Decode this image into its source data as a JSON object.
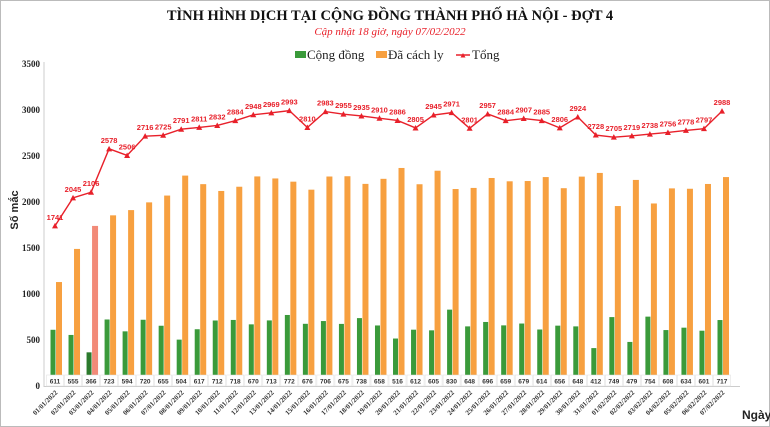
{
  "chart_data": {
    "type": "bar",
    "title": "TÌNH HÌNH DỊCH TẠI CỘNG ĐỒNG THÀNH PHỐ HÀ NỘI - ĐỢT 4",
    "subtitle": "Cập nhật 18 giờ, ngày  07/02/2022",
    "xlabel": "Ngày",
    "ylabel": "Số mắc",
    "ylim": [
      0,
      3500
    ],
    "yticks": [
      0,
      500,
      1000,
      1500,
      2000,
      2500,
      3000,
      3500
    ],
    "legend_position": "top",
    "categories": [
      "01/01/2022",
      "02/01/2022",
      "03/01/2022",
      "04/01/2022",
      "05/01/2022",
      "06/01/2022",
      "07/01/2022",
      "08/01/2022",
      "09/01/2022",
      "10/01/2022",
      "11/01/2022",
      "12/01/2022",
      "13/01/2022",
      "14/01/2022",
      "15/01/2022",
      "16/01/2022",
      "17/01/2022",
      "18/01/2022",
      "19/01/2022",
      "20/01/2022",
      "21/01/2022",
      "22/01/2022",
      "23/01/2022",
      "24/01/2022",
      "25/01/2022",
      "26/01/2022",
      "27/01/2022",
      "28/01/2022",
      "29/01/2022",
      "30/01/2022",
      "31/01/2022",
      "01/02/2022",
      "02/02/2022",
      "03/02/2022",
      "04/02/2022",
      "05/02/2022",
      "06/02/2022",
      "07/02/2022"
    ],
    "series": [
      {
        "name": "Cộng đồng",
        "type": "bar",
        "color": "#3a9a3a",
        "values": [
          611,
          555,
          366,
          723,
          594,
          720,
          655,
          504,
          617,
          712,
          718,
          670,
          713,
          772,
          676,
          706,
          675,
          738,
          658,
          516,
          612,
          605,
          830,
          648,
          696,
          659,
          679,
          614,
          656,
          648,
          412,
          749,
          479,
          754,
          608,
          634,
          601,
          717
        ]
      },
      {
        "name": "Đã cách ly",
        "type": "bar",
        "color": "#f7a040",
        "values": [
          1130,
          1490,
          1740,
          1855,
          1912,
          1996,
          2070,
          2287,
          2194,
          2120,
          2166,
          2278,
          2256,
          2221,
          2134,
          2277,
          2280,
          2197,
          2252,
          2370,
          2193,
          2340,
          2141,
          2153,
          2261,
          2225,
          2228,
          2271,
          2150,
          2276,
          2316,
          1956,
          2240,
          1984,
          2148,
          2144,
          2196,
          2271
        ]
      },
      {
        "name": "Tổng",
        "type": "line",
        "color": "#e8202a",
        "values": [
          1741,
          2045,
          2106,
          2578,
          2506,
          2716,
          2725,
          2791,
          2811,
          2832,
          2884,
          2948,
          2969,
          2993,
          2810,
          2983,
          2955,
          2935,
          2910,
          2886,
          2805,
          2945,
          2971,
          2801,
          2957,
          2884,
          2907,
          2885,
          2806,
          2924,
          2728,
          2705,
          2719,
          2738,
          2756,
          2778,
          2797,
          2988
        ]
      }
    ]
  }
}
